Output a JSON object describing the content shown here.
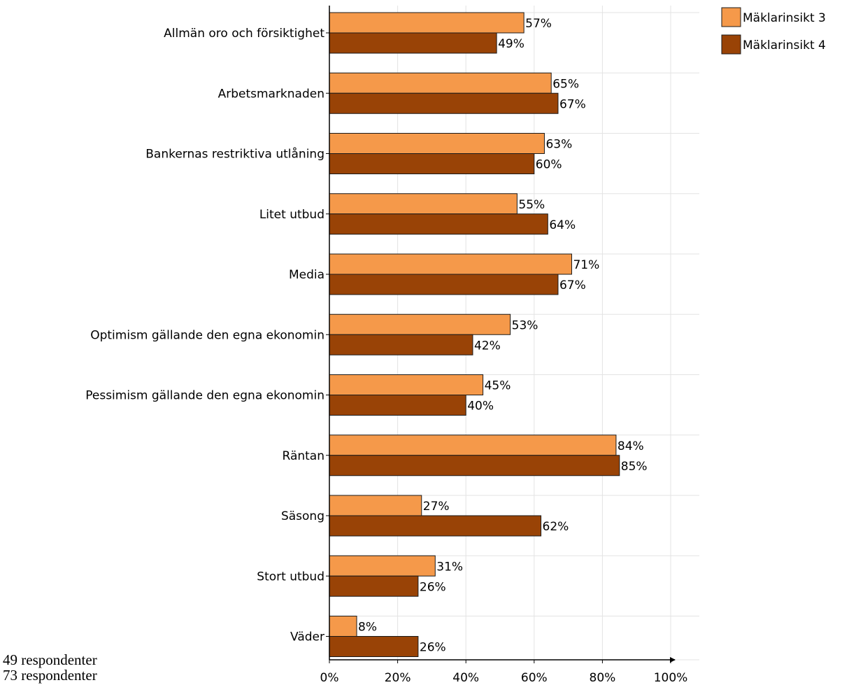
{
  "chart_data": {
    "type": "bar",
    "orientation": "horizontal",
    "categories": [
      "Allmän oro och försiktighet",
      "Arbetsmarknaden",
      "Bankernas restriktiva utlåning",
      "Litet utbud",
      "Media",
      "Optimism gällande den egna ekonomin",
      "Pessimism gällande den egna ekonomin",
      "Räntan",
      "Säsong",
      "Stort utbud",
      "Väder"
    ],
    "series": [
      {
        "name": "Mäklarinsikt 3",
        "values": [
          57,
          65,
          63,
          55,
          71,
          53,
          45,
          84,
          27,
          31,
          8
        ],
        "color": "#f5994a"
      },
      {
        "name": "Mäklarinsikt 4",
        "values": [
          49,
          67,
          60,
          64,
          67,
          42,
          40,
          85,
          62,
          26,
          26
        ],
        "color": "#994306"
      }
    ],
    "value_suffix": "%",
    "xlim": [
      0,
      100
    ],
    "xticks": [
      0,
      20,
      40,
      60,
      80,
      100
    ],
    "xtick_labels": [
      "0%",
      "20%",
      "40%",
      "60%",
      "80%",
      "100%"
    ],
    "grid": true,
    "legend_position": "top-right"
  },
  "notes": [
    "49 respondenter",
    "73 respondenter"
  ]
}
